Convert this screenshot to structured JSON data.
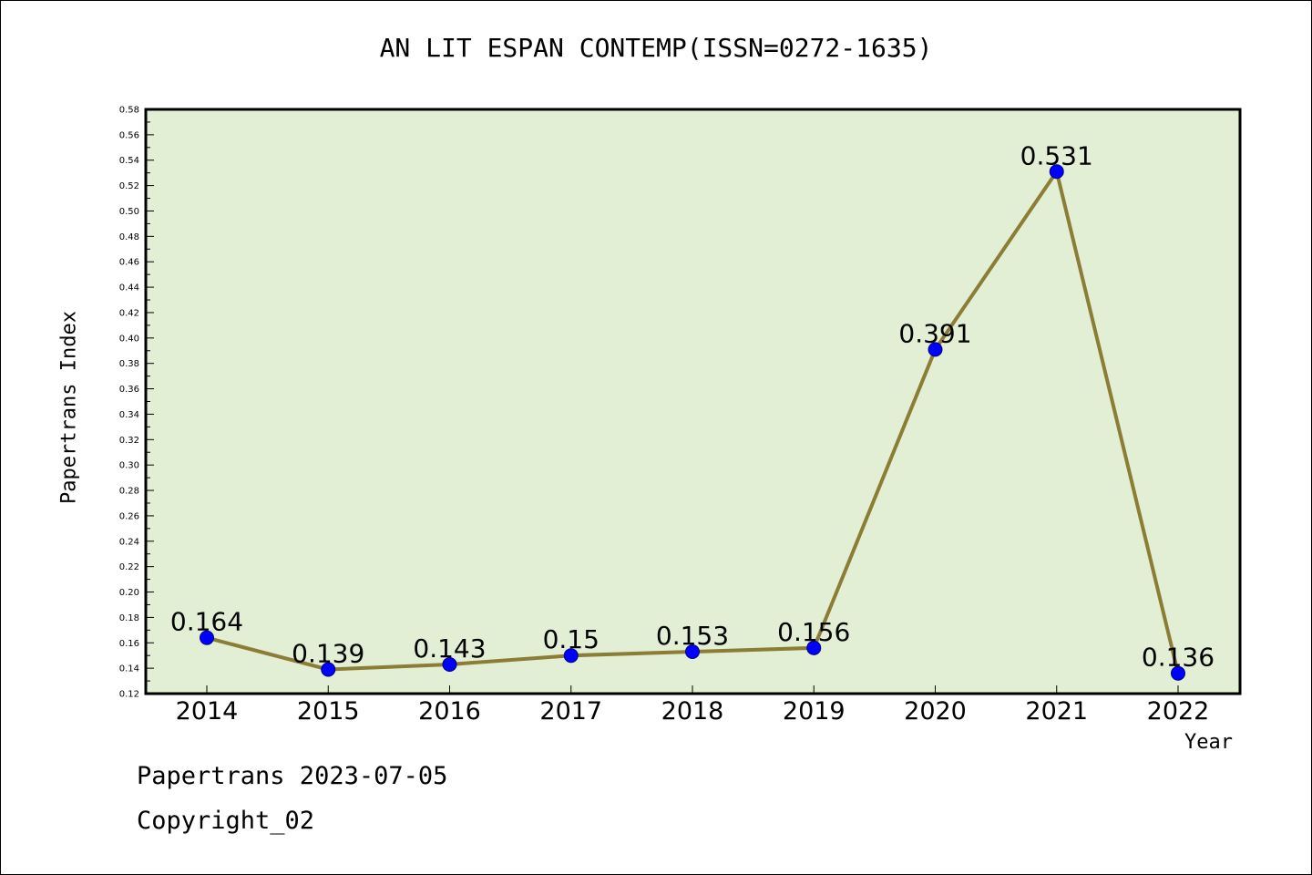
{
  "chart_data": {
    "type": "line",
    "title": "AN LIT ESPAN CONTEMP(ISSN=0272-1635)",
    "xlabel": "Year",
    "ylabel": "Papertrans Index",
    "categories": [
      "2014",
      "2015",
      "2016",
      "2017",
      "2018",
      "2019",
      "2020",
      "2021",
      "2022"
    ],
    "series": [
      {
        "values": [
          0.164,
          0.139,
          0.143,
          0.15,
          0.153,
          0.156,
          0.391,
          0.531,
          0.136
        ],
        "labels": [
          "0.164",
          "0.139",
          "0.143",
          "0.15",
          "0.153",
          "0.156",
          "0.391",
          "0.531",
          "0.136"
        ]
      }
    ],
    "ylim": [
      0.12,
      0.58
    ],
    "yticks": [
      "0.12",
      "0.14",
      "0.16",
      "0.18",
      "0.20",
      "0.22",
      "0.24",
      "0.26",
      "0.28",
      "0.30",
      "0.32",
      "0.34",
      "0.36",
      "0.38",
      "0.40",
      "0.42",
      "0.44",
      "0.46",
      "0.48",
      "0.50",
      "0.52",
      "0.54",
      "0.56",
      "0.58"
    ],
    "grid": false,
    "legend": "none",
    "colors": {
      "plot_background": "#e2efd4",
      "line": "#8b7d35",
      "marker": "#0000ff",
      "marker_edge": "#000080"
    }
  },
  "footer": {
    "line1": "Papertrans 2023-07-05",
    "line2": "Copyright_02"
  }
}
